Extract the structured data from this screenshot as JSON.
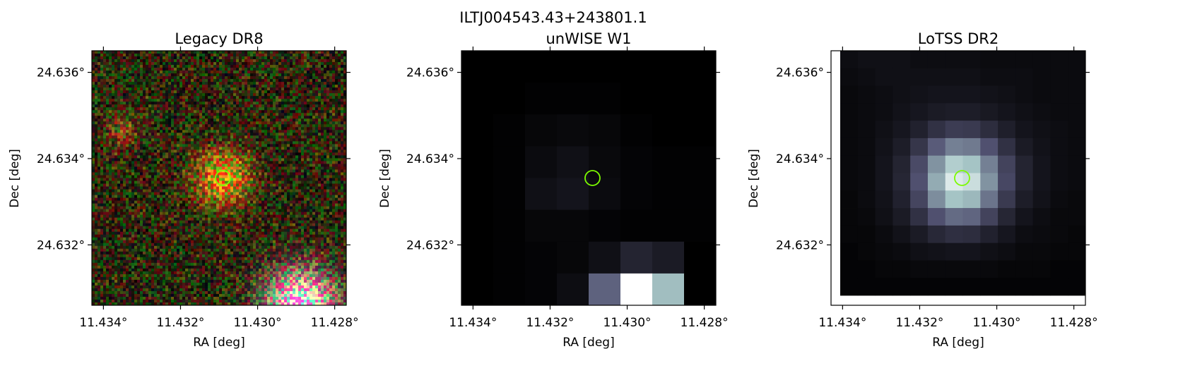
{
  "figure": {
    "suptitle": "ILTJ004543.43+243801.1"
  },
  "chart_data": [
    {
      "type": "heatmap",
      "title": "Legacy DR8",
      "xlabel": "RA [deg]",
      "ylabel": "Dec [deg]",
      "x_range": [
        11.4343,
        11.4277
      ],
      "y_range": [
        24.6306,
        24.6365
      ],
      "x_ticks": [
        11.434,
        11.432,
        11.43,
        11.428
      ],
      "x_tick_labels": [
        "11.434°",
        "11.432°",
        "11.430°",
        "11.428°"
      ],
      "y_ticks": [
        24.636,
        24.634,
        24.632
      ],
      "y_tick_labels": [
        "24.636°",
        "24.634°",
        "24.632°"
      ],
      "image": "RGB noise field (red/green/black pixels) with an orange source at center, a faint reddish blob upper-left and a bright pinkish-white source at lower-right",
      "marker": {
        "ra": 11.4309,
        "dec": 24.63355,
        "shape": "circle",
        "color": "#7CFC00"
      }
    },
    {
      "type": "heatmap",
      "title": "unWISE W1",
      "xlabel": "RA [deg]",
      "ylabel": "Dec [deg]",
      "x_range": [
        11.4343,
        11.4277
      ],
      "y_range": [
        24.6306,
        24.6365
      ],
      "x_ticks": [
        11.434,
        11.432,
        11.43,
        11.428
      ],
      "x_tick_labels": [
        "11.434°",
        "11.432°",
        "11.430°",
        "11.428°"
      ],
      "y_ticks": [
        24.636,
        24.634,
        24.632
      ],
      "y_tick_labels": [
        "24.636°",
        "24.634°",
        "24.632°"
      ],
      "grid_cols": 8,
      "grid_rows": 8,
      "colormap": "bone",
      "pixels": [
        [
          0.0,
          0.0,
          0.0,
          0.0,
          0.0,
          0.0,
          0.0,
          0.0
        ],
        [
          0.0,
          0.0,
          0.01,
          0.01,
          0.01,
          0.0,
          0.0,
          0.0
        ],
        [
          0.0,
          0.01,
          0.03,
          0.04,
          0.03,
          0.01,
          0.0,
          0.0
        ],
        [
          0.0,
          0.01,
          0.05,
          0.07,
          0.04,
          0.02,
          0.01,
          0.01
        ],
        [
          0.0,
          0.01,
          0.07,
          0.09,
          0.05,
          0.02,
          0.01,
          0.01
        ],
        [
          0.0,
          0.01,
          0.03,
          0.03,
          0.02,
          0.01,
          0.01,
          0.01
        ],
        [
          0.0,
          0.01,
          0.02,
          0.03,
          0.07,
          0.16,
          0.12,
          0.0
        ],
        [
          0.0,
          0.01,
          0.02,
          0.06,
          0.42,
          1.0,
          0.72,
          0.0
        ]
      ],
      "marker": {
        "ra": 11.4309,
        "dec": 24.63355,
        "shape": "circle",
        "color": "#7CFC00"
      }
    },
    {
      "type": "heatmap",
      "title": "LoTSS DR2",
      "xlabel": "RA [deg]",
      "ylabel": "Dec [deg]",
      "x_range": [
        11.4343,
        11.4277
      ],
      "y_range": [
        24.6306,
        24.6365
      ],
      "x_ticks": [
        11.434,
        11.432,
        11.43,
        11.428
      ],
      "x_tick_labels": [
        "11.434°",
        "11.432°",
        "11.430°",
        "11.428°"
      ],
      "y_ticks": [
        24.636,
        24.634,
        24.632
      ],
      "y_tick_labels": [
        "24.636°",
        "24.634°",
        "24.632°"
      ],
      "grid_cols": 14,
      "grid_rows": 14,
      "colormap": "bone",
      "pixels": [
        [
          0.06,
          0.07,
          0.07,
          0.07,
          0.06,
          0.06,
          0.06,
          0.06,
          0.05,
          0.05,
          0.05,
          0.05,
          0.05,
          0.05
        ],
        [
          0.05,
          0.06,
          0.07,
          0.07,
          0.07,
          0.07,
          0.07,
          0.07,
          0.06,
          0.06,
          0.06,
          0.05,
          0.05,
          0.05
        ],
        [
          0.04,
          0.05,
          0.06,
          0.07,
          0.08,
          0.09,
          0.09,
          0.09,
          0.08,
          0.07,
          0.06,
          0.05,
          0.05,
          0.05
        ],
        [
          0.04,
          0.05,
          0.06,
          0.08,
          0.1,
          0.12,
          0.13,
          0.13,
          0.11,
          0.09,
          0.07,
          0.06,
          0.05,
          0.05
        ],
        [
          0.04,
          0.05,
          0.07,
          0.1,
          0.15,
          0.22,
          0.27,
          0.26,
          0.2,
          0.14,
          0.09,
          0.07,
          0.06,
          0.05
        ],
        [
          0.04,
          0.05,
          0.08,
          0.13,
          0.24,
          0.4,
          0.52,
          0.5,
          0.36,
          0.22,
          0.12,
          0.08,
          0.06,
          0.05
        ],
        [
          0.04,
          0.05,
          0.09,
          0.16,
          0.33,
          0.58,
          0.78,
          0.74,
          0.52,
          0.3,
          0.16,
          0.09,
          0.06,
          0.05
        ],
        [
          0.04,
          0.05,
          0.09,
          0.17,
          0.36,
          0.66,
          0.9,
          0.85,
          0.58,
          0.32,
          0.16,
          0.09,
          0.06,
          0.05
        ],
        [
          0.03,
          0.05,
          0.08,
          0.15,
          0.31,
          0.56,
          0.74,
          0.7,
          0.48,
          0.26,
          0.13,
          0.08,
          0.05,
          0.04
        ],
        [
          0.03,
          0.04,
          0.07,
          0.12,
          0.22,
          0.36,
          0.45,
          0.43,
          0.3,
          0.17,
          0.09,
          0.06,
          0.04,
          0.04
        ],
        [
          0.03,
          0.03,
          0.05,
          0.08,
          0.12,
          0.18,
          0.21,
          0.2,
          0.15,
          0.1,
          0.06,
          0.05,
          0.04,
          0.03
        ],
        [
          0.02,
          0.03,
          0.04,
          0.05,
          0.07,
          0.08,
          0.09,
          0.09,
          0.07,
          0.06,
          0.04,
          0.04,
          0.03,
          0.03
        ],
        [
          0.02,
          0.02,
          0.03,
          0.03,
          0.04,
          0.04,
          0.04,
          0.04,
          0.04,
          0.03,
          0.03,
          0.03,
          0.02,
          0.02
        ],
        [
          0.02,
          0.02,
          0.02,
          0.02,
          0.02,
          0.02,
          0.02,
          0.02,
          0.02,
          0.02,
          0.02,
          0.02,
          0.02,
          0.02
        ]
      ],
      "marker": {
        "ra": 11.4309,
        "dec": 24.63355,
        "shape": "circle",
        "color": "#7CFC00"
      }
    }
  ]
}
